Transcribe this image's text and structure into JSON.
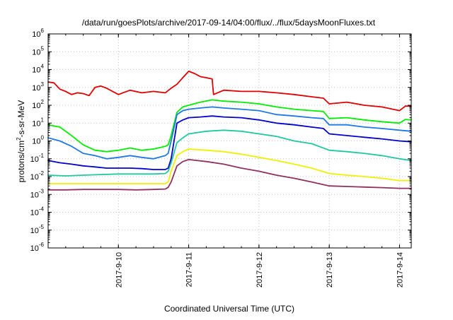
{
  "chart_data": {
    "type": "line",
    "title": "/data/run/goesPlots/archive/2017-09-14/04:00/flux/../flux/5daysMoonFluxes.txt",
    "xlabel": "Coordinated Universal Time (UTC)",
    "ylabel": "protons/cm2-s-sr-MeV",
    "y_scale": "log",
    "ylim": [
      1e-06,
      1000000.0
    ],
    "xlim": [
      "2017-09-09 00:00",
      "2017-09-14 04:00"
    ],
    "grid": true,
    "legend": "none",
    "x_ticks": [
      "2017-9-10",
      "2017-9-11",
      "2017-9-12",
      "2017-9-13",
      "2017-9-14"
    ],
    "y_ticks": [
      "10-6",
      "10-5",
      "10-4",
      "10-3",
      "10-2",
      "10-1",
      "100",
      "101",
      "102",
      "103",
      "104",
      "105",
      "106"
    ],
    "series": [
      {
        "color": "#e00000",
        "x": [
          "2017-09-09 00:00",
          "2017-09-09 02:00",
          "2017-09-09 04:00",
          "2017-09-09 06:00",
          "2017-09-09 08:00",
          "2017-09-09 10:00",
          "2017-09-09 12:00",
          "2017-09-09 14:00",
          "2017-09-09 16:00",
          "2017-09-09 18:00",
          "2017-09-09 20:00",
          "2017-09-10 00:00",
          "2017-09-10 04:00",
          "2017-09-10 08:00",
          "2017-09-10 12:00",
          "2017-09-10 16:00",
          "2017-09-10 18:00",
          "2017-09-10 20:00",
          "2017-09-10 22:00",
          "2017-09-11 00:00",
          "2017-09-11 02:00",
          "2017-09-11 04:00",
          "2017-09-11 06:00",
          "2017-09-11 08:00",
          "2017-09-11 08:30",
          "2017-09-11 12:00",
          "2017-09-11 18:00",
          "2017-09-12 00:00",
          "2017-09-12 06:00",
          "2017-09-12 12:00",
          "2017-09-12 18:00",
          "2017-09-12 22:00",
          "2017-09-13 00:00",
          "2017-09-13 06:00",
          "2017-09-13 12:00",
          "2017-09-13 18:00",
          "2017-09-14 00:00",
          "2017-09-14 02:00",
          "2017-09-14 04:00"
        ],
        "y": [
          2000,
          1800,
          800,
          600,
          400,
          500,
          450,
          350,
          1000,
          1200,
          900,
          400,
          700,
          500,
          600,
          500,
          900,
          1500,
          3500,
          8000,
          6000,
          4000,
          3500,
          3000,
          400,
          700,
          600,
          600,
          500,
          400,
          300,
          250,
          120,
          150,
          100,
          80,
          50,
          90,
          90
        ]
      },
      {
        "color": "#00ee00",
        "x": [
          "2017-09-09 00:00",
          "2017-09-09 04:00",
          "2017-09-09 08:00",
          "2017-09-09 12:00",
          "2017-09-09 16:00",
          "2017-09-09 20:00",
          "2017-09-10 00:00",
          "2017-09-10 04:00",
          "2017-09-10 08:00",
          "2017-09-10 12:00",
          "2017-09-10 16:00",
          "2017-09-10 17:00",
          "2017-09-10 18:00",
          "2017-09-10 20:00",
          "2017-09-10 22:00",
          "2017-09-11 00:00",
          "2017-09-11 04:00",
          "2017-09-11 08:00",
          "2017-09-11 12:00",
          "2017-09-11 18:00",
          "2017-09-12 00:00",
          "2017-09-12 06:00",
          "2017-09-12 12:00",
          "2017-09-12 18:00",
          "2017-09-12 22:00",
          "2017-09-13 00:00",
          "2017-09-13 06:00",
          "2017-09-13 12:00",
          "2017-09-13 18:00",
          "2017-09-14 00:00",
          "2017-09-14 02:00",
          "2017-09-14 04:00"
        ],
        "y": [
          8,
          6,
          2,
          0.6,
          0.3,
          0.25,
          0.3,
          0.4,
          0.3,
          0.35,
          0.5,
          0.6,
          2,
          40,
          80,
          100,
          150,
          200,
          170,
          150,
          120,
          80,
          60,
          50,
          45,
          18,
          20,
          15,
          12,
          10,
          16,
          15
        ]
      },
      {
        "color": "#1e78e6",
        "x": [
          "2017-09-09 00:00",
          "2017-09-09 04:00",
          "2017-09-09 08:00",
          "2017-09-09 12:00",
          "2017-09-09 16:00",
          "2017-09-09 20:00",
          "2017-09-10 00:00",
          "2017-09-10 04:00",
          "2017-09-10 08:00",
          "2017-09-10 12:00",
          "2017-09-10 16:00",
          "2017-09-10 17:00",
          "2017-09-10 18:00",
          "2017-09-10 20:00",
          "2017-09-10 22:00",
          "2017-09-11 00:00",
          "2017-09-11 04:00",
          "2017-09-11 08:00",
          "2017-09-11 12:00",
          "2017-09-11 18:00",
          "2017-09-12 00:00",
          "2017-09-12 06:00",
          "2017-09-12 12:00",
          "2017-09-12 18:00",
          "2017-09-12 22:00",
          "2017-09-13 00:00",
          "2017-09-13 06:00",
          "2017-09-13 12:00",
          "2017-09-13 18:00",
          "2017-09-14 00:00",
          "2017-09-14 04:00"
        ],
        "y": [
          1.5,
          1,
          0.5,
          0.2,
          0.15,
          0.1,
          0.12,
          0.15,
          0.12,
          0.1,
          0.15,
          0.2,
          1,
          30,
          50,
          60,
          70,
          80,
          70,
          60,
          50,
          30,
          25,
          20,
          18,
          8,
          8,
          6,
          5,
          4,
          3.5
        ]
      },
      {
        "color": "#0000cc",
        "x": [
          "2017-09-09 00:00",
          "2017-09-09 04:00",
          "2017-09-09 08:00",
          "2017-09-09 12:00",
          "2017-09-09 16:00",
          "2017-09-09 20:00",
          "2017-09-10 00:00",
          "2017-09-10 04:00",
          "2017-09-10 08:00",
          "2017-09-10 12:00",
          "2017-09-10 16:00",
          "2017-09-10 17:00",
          "2017-09-10 18:00",
          "2017-09-10 20:00",
          "2017-09-10 22:00",
          "2017-09-11 00:00",
          "2017-09-11 04:00",
          "2017-09-11 08:00",
          "2017-09-11 12:00",
          "2017-09-11 18:00",
          "2017-09-12 00:00",
          "2017-09-12 06:00",
          "2017-09-12 12:00",
          "2017-09-12 18:00",
          "2017-09-12 22:00",
          "2017-09-13 00:00",
          "2017-09-13 06:00",
          "2017-09-13 12:00",
          "2017-09-13 18:00",
          "2017-09-14 00:00",
          "2017-09-14 04:00"
        ],
        "y": [
          0.08,
          0.06,
          0.05,
          0.04,
          0.035,
          0.03,
          0.03,
          0.03,
          0.028,
          0.025,
          0.025,
          0.03,
          0.1,
          10,
          15,
          20,
          22,
          25,
          22,
          20,
          15,
          10,
          8,
          6,
          5,
          2.5,
          2,
          1.6,
          1.3,
          1,
          0.9
        ]
      },
      {
        "color": "#20c8a0",
        "x": [
          "2017-09-09 00:00",
          "2017-09-09 06:00",
          "2017-09-09 12:00",
          "2017-09-09 18:00",
          "2017-09-10 00:00",
          "2017-09-10 06:00",
          "2017-09-10 12:00",
          "2017-09-10 16:00",
          "2017-09-10 17:00",
          "2017-09-10 18:00",
          "2017-09-10 20:00",
          "2017-09-10 22:00",
          "2017-09-11 00:00",
          "2017-09-11 06:00",
          "2017-09-11 12:00",
          "2017-09-11 18:00",
          "2017-09-12 00:00",
          "2017-09-12 06:00",
          "2017-09-12 12:00",
          "2017-09-12 18:00",
          "2017-09-13 00:00",
          "2017-09-13 06:00",
          "2017-09-13 12:00",
          "2017-09-13 18:00",
          "2017-09-14 00:00",
          "2017-09-14 04:00"
        ],
        "y": [
          0.012,
          0.011,
          0.012,
          0.013,
          0.014,
          0.014,
          0.014,
          0.015,
          0.02,
          0.06,
          0.8,
          1.5,
          2.5,
          3.5,
          4,
          3.5,
          2.5,
          1.8,
          1,
          0.7,
          0.3,
          0.25,
          0.2,
          0.15,
          0.1,
          0.08
        ]
      },
      {
        "color": "#f0f000",
        "x": [
          "2017-09-09 00:00",
          "2017-09-09 06:00",
          "2017-09-09 12:00",
          "2017-09-09 18:00",
          "2017-09-10 00:00",
          "2017-09-10 06:00",
          "2017-09-10 12:00",
          "2017-09-10 16:00",
          "2017-09-10 17:00",
          "2017-09-10 18:00",
          "2017-09-10 20:00",
          "2017-09-10 22:00",
          "2017-09-11 00:00",
          "2017-09-11 06:00",
          "2017-09-11 12:00",
          "2017-09-11 18:00",
          "2017-09-12 00:00",
          "2017-09-12 06:00",
          "2017-09-12 12:00",
          "2017-09-12 18:00",
          "2017-09-13 00:00",
          "2017-09-13 06:00",
          "2017-09-13 12:00",
          "2017-09-13 18:00",
          "2017-09-14 00:00",
          "2017-09-14 04:00"
        ],
        "y": [
          0.004,
          0.004,
          0.004,
          0.004,
          0.004,
          0.004,
          0.004,
          0.004,
          0.005,
          0.02,
          0.15,
          0.25,
          0.35,
          0.3,
          0.25,
          0.18,
          0.12,
          0.08,
          0.05,
          0.03,
          0.015,
          0.012,
          0.01,
          0.008,
          0.006,
          0.006
        ]
      },
      {
        "color": "#903060",
        "x": [
          "2017-09-09 00:00",
          "2017-09-09 06:00",
          "2017-09-09 12:00",
          "2017-09-09 18:00",
          "2017-09-10 00:00",
          "2017-09-10 06:00",
          "2017-09-10 12:00",
          "2017-09-10 16:00",
          "2017-09-10 17:00",
          "2017-09-10 18:00",
          "2017-09-10 20:00",
          "2017-09-10 22:00",
          "2017-09-11 00:00",
          "2017-09-11 06:00",
          "2017-09-11 12:00",
          "2017-09-11 18:00",
          "2017-09-12 00:00",
          "2017-09-12 06:00",
          "2017-09-12 12:00",
          "2017-09-12 18:00",
          "2017-09-13 00:00",
          "2017-09-13 06:00",
          "2017-09-13 12:00",
          "2017-09-13 18:00",
          "2017-09-14 00:00",
          "2017-09-14 04:00"
        ],
        "y": [
          0.0018,
          0.0018,
          0.0019,
          0.0019,
          0.0019,
          0.0018,
          0.0019,
          0.002,
          0.0025,
          0.005,
          0.04,
          0.07,
          0.09,
          0.07,
          0.05,
          0.03,
          0.02,
          0.012,
          0.008,
          0.005,
          0.003,
          0.0028,
          0.0026,
          0.0024,
          0.0022,
          0.0022
        ]
      }
    ]
  }
}
